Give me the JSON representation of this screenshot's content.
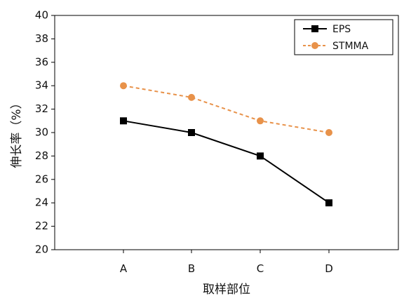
{
  "chart_data": {
    "type": "line",
    "categories": [
      "A",
      "B",
      "C",
      "D"
    ],
    "series": [
      {
        "name": "EPS",
        "values": [
          31,
          30,
          28,
          24
        ],
        "color": "#000000",
        "line_style": "solid",
        "marker": "square"
      },
      {
        "name": "STMMA",
        "values": [
          34,
          33,
          31,
          30
        ],
        "color": "#e8924a",
        "line_style": "dashed",
        "marker": "circle"
      }
    ],
    "xlabel": "取样部位",
    "ylabel": "伸长率（%）",
    "ylim": [
      20,
      40
    ],
    "yticks": [
      20,
      22,
      24,
      26,
      28,
      30,
      32,
      34,
      36,
      38,
      40
    ],
    "grid": false,
    "legend_position": "top-right"
  }
}
